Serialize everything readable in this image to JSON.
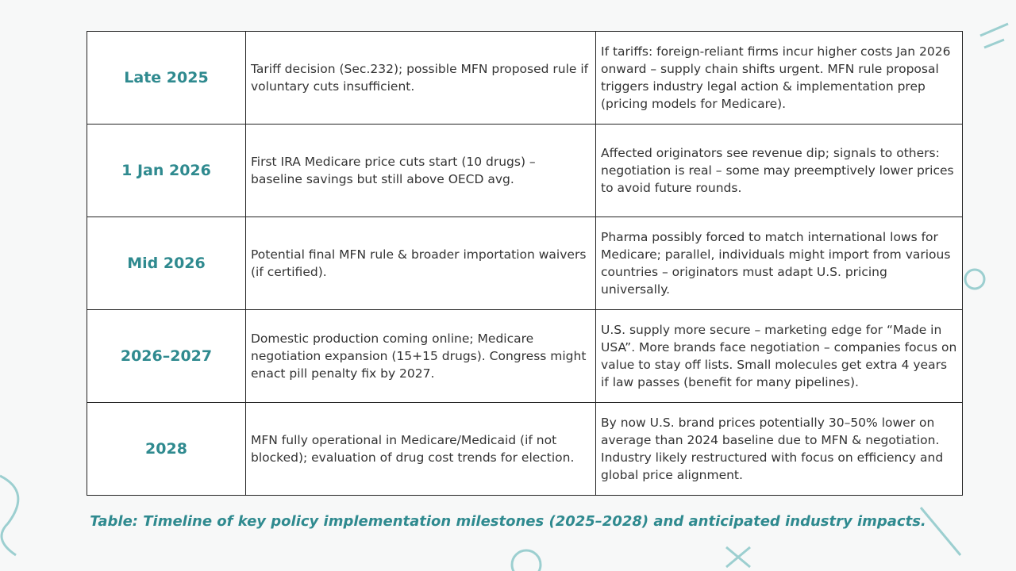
{
  "table": {
    "rows": [
      [
        "Late 2025",
        "Tariff decision (Sec.232); possible MFN proposed rule if voluntary cuts insufficient.",
        "If tariffs: foreign-reliant firms incur higher costs Jan 2026 onward – supply chain shifts urgent. MFN rule proposal triggers industry legal action & implementation prep (pricing models for Medicare)."
      ],
      [
        "1 Jan 2026",
        "First IRA Medicare price cuts start (10 drugs) – baseline savings but still above OECD avg.",
        "Affected originators see revenue dip; signals to others: negotiation is real – some may preemptively lower prices to avoid future rounds."
      ],
      [
        "Mid 2026",
        "Potential final MFN rule & broader importation waivers (if certified).",
        "Pharma possibly forced to match international lows for Medicare; parallel, individuals might import from various countries – originators must adapt U.S. pricing universally."
      ],
      [
        "2026–2027",
        "Domestic production coming online; Medicare negotiation expansion (15+15 drugs). Congress might enact pill penalty fix by 2027.",
        "U.S. supply more secure – marketing edge for “Made in USA”. More brands face negotiation – companies focus on value to stay off lists. Small molecules get extra 4 years if law passes (benefit for many pipelines)."
      ],
      [
        "2028",
        "MFN fully operational in Medicare/Medicaid (if not blocked); evaluation of drug cost trends for election.",
        "By now U.S. brand prices potentially 30–50% lower on average than 2024 baseline due to MFN & negotiation. Industry likely restructured with focus on efficiency and global price alignment."
      ]
    ]
  },
  "caption": "Table: Timeline of key policy implementation milestones (2025–2028) and anticipated industry impacts."
}
